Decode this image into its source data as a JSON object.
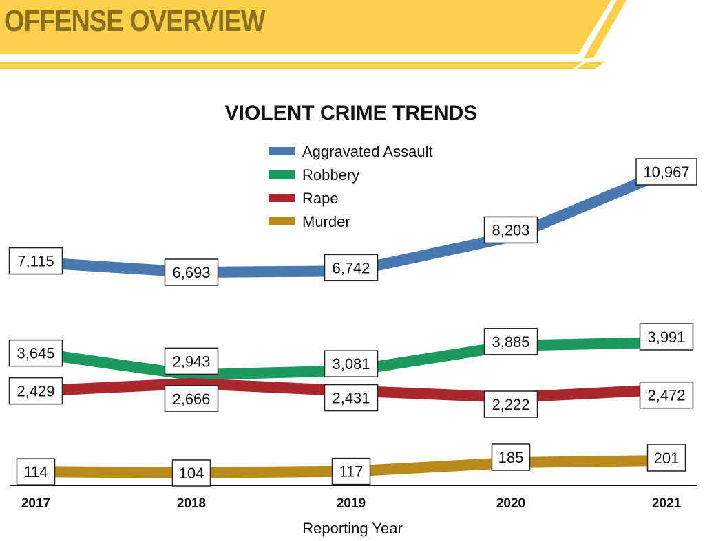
{
  "header": {
    "title": "OFFENSE OVERVIEW",
    "banner_color": "#fcd04b",
    "title_color": "#8a6f1c"
  },
  "chart_data": {
    "type": "line",
    "title": "VIOLENT CRIME TRENDS",
    "xlabel": "Reporting Year",
    "ylabel": "",
    "x": [
      "2017",
      "2018",
      "2019",
      "2020",
      "2021"
    ],
    "legend_position": "top-center",
    "grid": false,
    "series": [
      {
        "name": "Aggravated Assault",
        "color": "#4a78b0",
        "values": [
          7115,
          6693,
          6742,
          8203,
          10967
        ],
        "labels": [
          "7,115",
          "6,693",
          "6,742",
          "8,203",
          "10,967"
        ]
      },
      {
        "name": "Robbery",
        "color": "#1a9a5c",
        "values": [
          3645,
          2943,
          3081,
          3885,
          3991
        ],
        "labels": [
          "3,645",
          "2,943",
          "3,081",
          "3,885",
          "3,991"
        ]
      },
      {
        "name": "Rape",
        "color": "#a8282e",
        "values": [
          2429,
          2666,
          2431,
          2222,
          2472
        ],
        "labels": [
          "2,429",
          "2,666",
          "2,431",
          "2,222",
          "2,472"
        ]
      },
      {
        "name": "Murder",
        "color": "#b88a1c",
        "values": [
          114,
          104,
          117,
          185,
          201
        ],
        "labels": [
          "114",
          "104",
          "117",
          "185",
          "201"
        ]
      }
    ]
  }
}
